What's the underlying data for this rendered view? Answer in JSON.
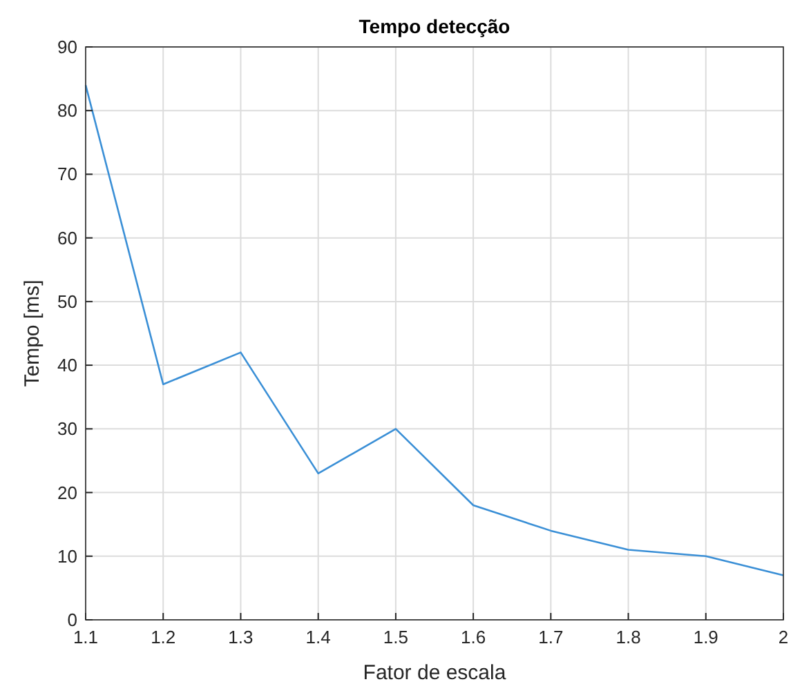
{
  "chart_data": {
    "type": "line",
    "title": "Tempo detecção",
    "xlabel": "Fator de escala",
    "ylabel": "Tempo [ms]",
    "x": [
      1.1,
      1.2,
      1.3,
      1.4,
      1.5,
      1.6,
      1.7,
      1.8,
      1.9,
      2
    ],
    "series": [
      {
        "color": "#3a8fd6",
        "values": [
          84,
          37,
          42,
          23,
          30,
          18,
          14,
          11,
          10,
          7
        ]
      }
    ],
    "xlim": [
      1.1,
      2
    ],
    "xticks": [
      1.1,
      1.2,
      1.3,
      1.4,
      1.5,
      1.6,
      1.7,
      1.8,
      1.9,
      2
    ],
    "ylim": [
      0,
      90
    ],
    "yticks": [
      0,
      10,
      20,
      30,
      40,
      50,
      60,
      70,
      80,
      90
    ],
    "grid": true,
    "marker": "none",
    "line_style": "solid"
  }
}
